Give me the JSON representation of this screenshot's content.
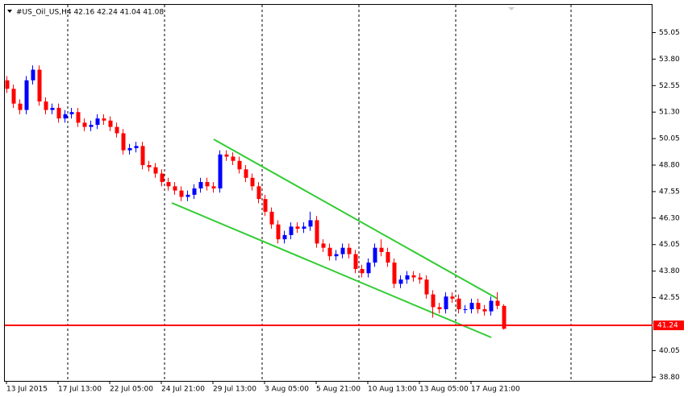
{
  "chart_data": {
    "type": "candlestick",
    "title": "#US_Oil_US,H4  42.16 42.24 41.04 41.08",
    "categories": [
      "13 Jul 2015",
      null,
      null,
      null,
      null,
      null,
      null,
      null,
      "17 Jul 13:00",
      null,
      null,
      null,
      null,
      null,
      null,
      null,
      "22 Jul 05:00",
      null,
      null,
      null,
      null,
      null,
      null,
      null,
      "24 Jul 21:00",
      null,
      null,
      null,
      null,
      null,
      null,
      null,
      "29 Jul 13:00",
      null,
      null,
      null,
      null,
      null,
      null,
      null,
      "3 Aug 05:00",
      null,
      null,
      null,
      null,
      null,
      null,
      null,
      "5 Aug 21:00",
      null,
      null,
      null,
      null,
      null,
      null,
      null,
      "10 Aug 13:00",
      null,
      null,
      null,
      null,
      null,
      null,
      null,
      "13 Aug 05:00",
      null,
      null,
      null,
      null,
      null,
      null,
      null,
      "17 Aug 21:00",
      null,
      null,
      null,
      null,
      null
    ],
    "open": [
      52.8,
      52.4,
      51.7,
      51.4,
      52.8,
      53.3,
      51.8,
      51.4,
      51.5,
      51.0,
      51.2,
      51.3,
      50.8,
      50.6,
      50.7,
      51.0,
      50.9,
      50.6,
      50.3,
      49.5,
      49.6,
      49.7,
      48.8,
      48.7,
      48.4,
      48.0,
      47.8,
      47.6,
      47.3,
      47.4,
      47.7,
      48.0,
      47.8,
      47.7,
      49.3,
      49.2,
      49.0,
      48.6,
      48.2,
      47.8,
      47.2,
      46.6,
      46.0,
      45.3,
      45.5,
      45.9,
      45.8,
      45.9,
      46.2,
      45.1,
      44.9,
      44.5,
      44.6,
      44.9,
      44.6,
      43.9,
      43.7,
      44.2,
      44.9,
      44.7,
      44.2,
      43.2,
      43.4,
      43.6,
      43.5,
      43.4,
      42.7,
      42.1,
      42.0,
      42.6,
      42.5,
      42.0,
      42.0,
      42.3,
      42.0,
      41.9,
      42.4,
      42.16
    ],
    "high": [
      53.0,
      52.6,
      51.9,
      53.0,
      53.5,
      53.5,
      52.0,
      51.7,
      51.7,
      51.4,
      51.5,
      51.5,
      51.0,
      50.9,
      51.2,
      51.2,
      51.1,
      50.8,
      50.5,
      49.8,
      49.9,
      49.9,
      49.0,
      48.9,
      48.6,
      48.2,
      48.0,
      47.8,
      47.6,
      47.9,
      48.2,
      48.2,
      48.0,
      49.5,
      49.5,
      49.4,
      49.2,
      48.8,
      48.4,
      48.0,
      47.4,
      46.8,
      46.2,
      45.7,
      46.1,
      46.1,
      46.1,
      46.6,
      46.4,
      45.3,
      45.1,
      44.8,
      45.1,
      45.1,
      44.8,
      44.1,
      44.4,
      45.1,
      45.3,
      44.9,
      44.4,
      43.6,
      43.8,
      43.8,
      43.7,
      43.6,
      42.9,
      42.3,
      42.8,
      42.8,
      42.7,
      42.2,
      42.5,
      42.5,
      42.2,
      42.6,
      42.8,
      42.24
    ],
    "low": [
      52.2,
      51.5,
      51.2,
      51.2,
      52.6,
      51.6,
      51.2,
      51.2,
      50.8,
      50.8,
      51.0,
      50.6,
      50.4,
      50.4,
      50.5,
      50.7,
      50.4,
      50.1,
      49.3,
      49.3,
      49.4,
      48.6,
      48.5,
      48.2,
      47.8,
      47.6,
      47.4,
      47.1,
      47.1,
      47.2,
      47.5,
      47.6,
      47.5,
      47.5,
      49.0,
      48.8,
      48.4,
      48.0,
      47.6,
      47.0,
      46.4,
      45.8,
      45.1,
      45.1,
      45.3,
      45.6,
      45.6,
      45.7,
      44.9,
      44.7,
      44.3,
      44.3,
      44.4,
      44.4,
      43.7,
      43.5,
      43.5,
      44.0,
      44.5,
      44.0,
      43.0,
      43.0,
      43.2,
      43.3,
      43.2,
      42.5,
      41.6,
      41.8,
      41.8,
      42.3,
      41.8,
      41.8,
      41.8,
      41.8,
      41.7,
      41.7,
      42.0,
      41.04
    ],
    "close": [
      52.4,
      51.7,
      51.4,
      52.8,
      53.3,
      51.8,
      51.4,
      51.5,
      51.0,
      51.2,
      51.3,
      50.8,
      50.6,
      50.7,
      51.0,
      50.9,
      50.6,
      50.3,
      49.5,
      49.6,
      49.7,
      48.8,
      48.7,
      48.4,
      48.0,
      47.8,
      47.6,
      47.3,
      47.4,
      47.7,
      48.0,
      47.8,
      47.7,
      49.3,
      49.2,
      49.0,
      48.6,
      48.2,
      47.8,
      47.2,
      46.6,
      46.0,
      45.3,
      45.5,
      45.9,
      45.8,
      45.9,
      46.2,
      45.1,
      44.9,
      44.5,
      44.6,
      44.9,
      44.6,
      43.9,
      43.7,
      44.2,
      44.9,
      44.7,
      44.2,
      43.2,
      43.4,
      43.6,
      43.5,
      43.4,
      42.7,
      42.1,
      42.0,
      42.6,
      42.5,
      42.0,
      42.0,
      42.3,
      42.0,
      41.9,
      42.4,
      42.16,
      41.08
    ],
    "up_color": "#0000ff",
    "down_color": "#ff0000",
    "ylim": [
      38.62,
      56.36
    ],
    "yticks": [
      55.05,
      {
        "value": 53.8,
        "label": "53.80"
      },
      52.55,
      {
        "value": 51.3,
        "label": "51.30"
      },
      50.05,
      {
        "value": 48.8,
        "label": "48.80"
      },
      47.55,
      {
        "value": 46.3,
        "label": "46.30"
      },
      45.05,
      {
        "value": 43.8,
        "label": "43.80"
      },
      42.55,
      40.05,
      {
        "value": 38.8,
        "label": "38.80"
      }
    ],
    "hline": {
      "value": 41.24,
      "color": "#ff0000"
    }
  }
}
